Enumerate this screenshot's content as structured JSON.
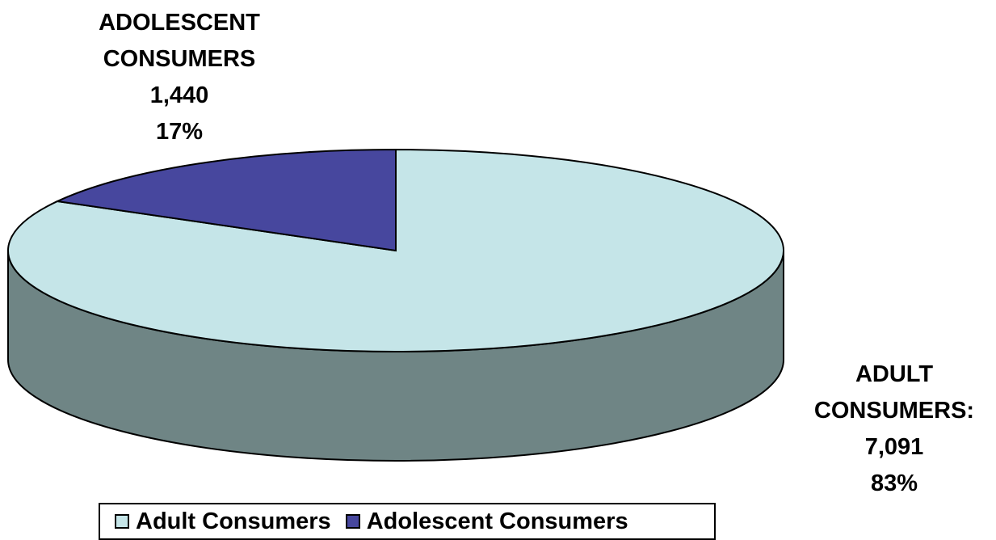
{
  "chart_data": {
    "type": "pie",
    "style": "3d",
    "slices": [
      {
        "name": "Adult Consumers",
        "value": 7091,
        "percent": 83,
        "color": "#c5e5e8",
        "side_color": "#6f8585",
        "label_lines": [
          "ADULT",
          "CONSUMERS:",
          "7,091",
          "83%"
        ]
      },
      {
        "name": "Adolescent Consumers",
        "value": 1440,
        "percent": 17,
        "color": "#47479e",
        "side_color": "#2c2c6a",
        "label_lines": [
          "ADOLESCENT",
          "CONSUMERS",
          "1,440",
          "17%"
        ]
      }
    ],
    "legend": {
      "placement": "bottom",
      "entries": [
        "Adult Consumers",
        "Adolescent Consumers"
      ]
    }
  }
}
